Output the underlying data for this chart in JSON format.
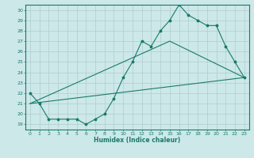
{
  "xlabel": "Humidex (Indice chaleur)",
  "ylabel": "",
  "bg_color": "#cce8e8",
  "grid_color": "#b0cccc",
  "line_color": "#1a7a6a",
  "xlim": [
    -0.5,
    23.5
  ],
  "ylim": [
    18.5,
    30.5
  ],
  "xticks": [
    0,
    1,
    2,
    3,
    4,
    5,
    6,
    7,
    8,
    9,
    10,
    11,
    12,
    13,
    14,
    15,
    16,
    17,
    18,
    19,
    20,
    21,
    22,
    23
  ],
  "yticks": [
    19,
    20,
    21,
    22,
    23,
    24,
    25,
    26,
    27,
    28,
    29,
    30
  ],
  "curve1_x": [
    0,
    1,
    2,
    3,
    4,
    5,
    6,
    7,
    8,
    9,
    10,
    11,
    12,
    13,
    14,
    15,
    16,
    17,
    18,
    19,
    20,
    21,
    22,
    23
  ],
  "curve1_y": [
    22,
    21,
    19.5,
    19.5,
    19.5,
    19.5,
    19,
    19.5,
    20,
    21.5,
    23.5,
    25,
    27,
    26.5,
    28,
    29,
    30.5,
    29.5,
    29,
    28.5,
    28.5,
    26.5,
    25,
    23.5
  ],
  "curve2_x": [
    0,
    23
  ],
  "curve2_y": [
    21,
    23.5
  ],
  "curve3_x": [
    0,
    15,
    23
  ],
  "curve3_y": [
    21,
    27,
    23.5
  ]
}
